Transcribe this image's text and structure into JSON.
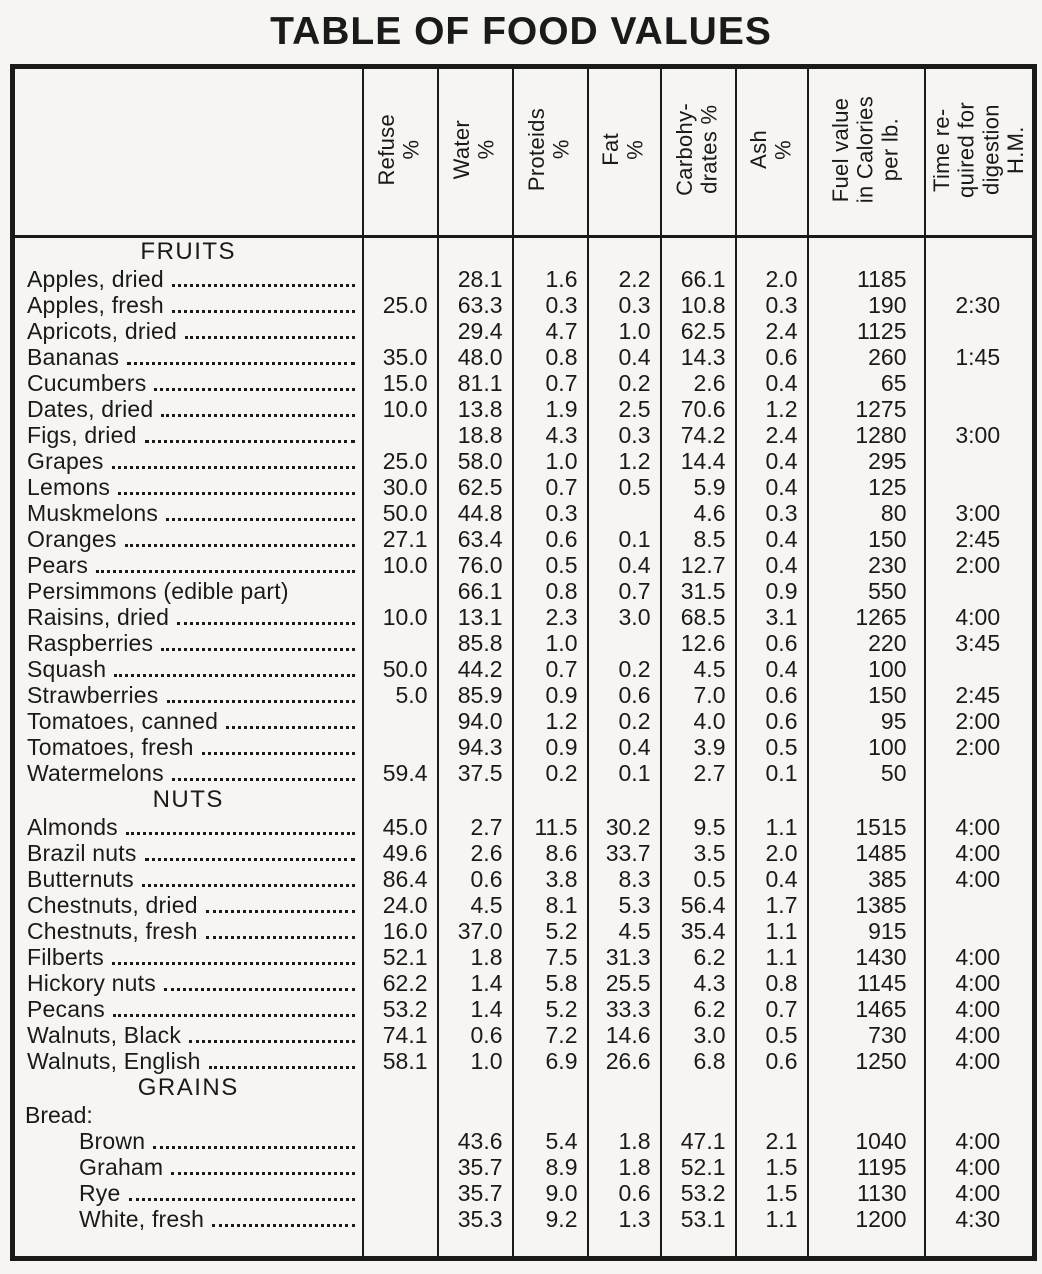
{
  "title": "TABLE OF FOOD VALUES",
  "colors": {
    "paper": "#f6f5f1",
    "ink": "#1a1a1a"
  },
  "columns": [
    {
      "id": "refuse",
      "label": "Refuse\n%"
    },
    {
      "id": "water",
      "label": "Water\n%"
    },
    {
      "id": "proteids",
      "label": "Proteids\n%"
    },
    {
      "id": "fat",
      "label": "Fat\n%"
    },
    {
      "id": "carbohydrates",
      "label": "Carbohy-\ndrates %"
    },
    {
      "id": "ash",
      "label": "Ash\n%"
    },
    {
      "id": "fuel-value",
      "label": "Fuel value\nin Calories\nper lb."
    },
    {
      "id": "digestion-time",
      "label": "Time re-\nquired for\ndigestion\nH.M."
    }
  ],
  "sections": [
    {
      "heading": "FRUITS",
      "rows": [
        {
          "name": "Apples, dried",
          "values": [
            "",
            "28.1",
            "1.6",
            "2.2",
            "66.1",
            "2.0",
            "1185",
            ""
          ]
        },
        {
          "name": "Apples, fresh",
          "values": [
            "25.0",
            "63.3",
            "0.3",
            "0.3",
            "10.8",
            "0.3",
            "190",
            "2:30"
          ]
        },
        {
          "name": "Apricots, dried",
          "values": [
            "",
            "29.4",
            "4.7",
            "1.0",
            "62.5",
            "2.4",
            "1125",
            ""
          ]
        },
        {
          "name": "Bananas",
          "values": [
            "35.0",
            "48.0",
            "0.8",
            "0.4",
            "14.3",
            "0.6",
            "260",
            "1:45"
          ]
        },
        {
          "name": "Cucumbers",
          "values": [
            "15.0",
            "81.1",
            "0.7",
            "0.2",
            "2.6",
            "0.4",
            "65",
            ""
          ]
        },
        {
          "name": "Dates, dried",
          "values": [
            "10.0",
            "13.8",
            "1.9",
            "2.5",
            "70.6",
            "1.2",
            "1275",
            ""
          ]
        },
        {
          "name": "Figs, dried",
          "values": [
            "",
            "18.8",
            "4.3",
            "0.3",
            "74.2",
            "2.4",
            "1280",
            "3:00"
          ]
        },
        {
          "name": "Grapes",
          "values": [
            "25.0",
            "58.0",
            "1.0",
            "1.2",
            "14.4",
            "0.4",
            "295",
            ""
          ]
        },
        {
          "name": "Lemons",
          "values": [
            "30.0",
            "62.5",
            "0.7",
            "0.5",
            "5.9",
            "0.4",
            "125",
            ""
          ]
        },
        {
          "name": "Muskmelons",
          "values": [
            "50.0",
            "44.8",
            "0.3",
            "",
            "4.6",
            "0.3",
            "80",
            "3:00"
          ]
        },
        {
          "name": "Oranges",
          "values": [
            "27.1",
            "63.4",
            "0.6",
            "0.1",
            "8.5",
            "0.4",
            "150",
            "2:45"
          ]
        },
        {
          "name": "Pears",
          "values": [
            "10.0",
            "76.0",
            "0.5",
            "0.4",
            "12.7",
            "0.4",
            "230",
            "2:00"
          ]
        },
        {
          "name": "Persimmons (edible part)",
          "leader": false,
          "values": [
            "",
            "66.1",
            "0.8",
            "0.7",
            "31.5",
            "0.9",
            "550",
            ""
          ]
        },
        {
          "name": "Raisins, dried",
          "values": [
            "10.0",
            "13.1",
            "2.3",
            "3.0",
            "68.5",
            "3.1",
            "1265",
            "4:00"
          ]
        },
        {
          "name": "Raspberries",
          "values": [
            "",
            "85.8",
            "1.0",
            "",
            "12.6",
            "0.6",
            "220",
            "3:45"
          ]
        },
        {
          "name": "Squash",
          "values": [
            "50.0",
            "44.2",
            "0.7",
            "0.2",
            "4.5",
            "0.4",
            "100",
            ""
          ]
        },
        {
          "name": "Strawberries",
          "values": [
            "5.0",
            "85.9",
            "0.9",
            "0.6",
            "7.0",
            "0.6",
            "150",
            "2:45"
          ]
        },
        {
          "name": "Tomatoes, canned",
          "values": [
            "",
            "94.0",
            "1.2",
            "0.2",
            "4.0",
            "0.6",
            "95",
            "2:00"
          ]
        },
        {
          "name": "Tomatoes, fresh",
          "values": [
            "",
            "94.3",
            "0.9",
            "0.4",
            "3.9",
            "0.5",
            "100",
            "2:00"
          ]
        },
        {
          "name": "Watermelons",
          "values": [
            "59.4",
            "37.5",
            "0.2",
            "0.1",
            "2.7",
            "0.1",
            "50",
            ""
          ]
        }
      ]
    },
    {
      "heading": "NUTS",
      "rows": [
        {
          "name": "Almonds",
          "values": [
            "45.0",
            "2.7",
            "11.5",
            "30.2",
            "9.5",
            "1.1",
            "1515",
            "4:00"
          ]
        },
        {
          "name": "Brazil nuts",
          "values": [
            "49.6",
            "2.6",
            "8.6",
            "33.7",
            "3.5",
            "2.0",
            "1485",
            "4:00"
          ]
        },
        {
          "name": "Butternuts",
          "values": [
            "86.4",
            "0.6",
            "3.8",
            "8.3",
            "0.5",
            "0.4",
            "385",
            "4:00"
          ]
        },
        {
          "name": "Chestnuts, dried",
          "values": [
            "24.0",
            "4.5",
            "8.1",
            "5.3",
            "56.4",
            "1.7",
            "1385",
            ""
          ]
        },
        {
          "name": "Chestnuts, fresh",
          "values": [
            "16.0",
            "37.0",
            "5.2",
            "4.5",
            "35.4",
            "1.1",
            "915",
            ""
          ]
        },
        {
          "name": "Filberts",
          "values": [
            "52.1",
            "1.8",
            "7.5",
            "31.3",
            "6.2",
            "1.1",
            "1430",
            "4:00"
          ]
        },
        {
          "name": "Hickory nuts",
          "values": [
            "62.2",
            "1.4",
            "5.8",
            "25.5",
            "4.3",
            "0.8",
            "1145",
            "4:00"
          ]
        },
        {
          "name": "Pecans",
          "values": [
            "53.2",
            "1.4",
            "5.2",
            "33.3",
            "6.2",
            "0.7",
            "1465",
            "4:00"
          ]
        },
        {
          "name": "Walnuts, Black",
          "values": [
            "74.1",
            "0.6",
            "7.2",
            "14.6",
            "3.0",
            "0.5",
            "730",
            "4:00"
          ]
        },
        {
          "name": "Walnuts, English",
          "values": [
            "58.1",
            "1.0",
            "6.9",
            "26.6",
            "6.8",
            "0.6",
            "1250",
            "4:00"
          ]
        }
      ]
    },
    {
      "heading": "GRAINS",
      "subheading": "Bread:",
      "rows": [
        {
          "name": "Brown",
          "indent": true,
          "values": [
            "",
            "43.6",
            "5.4",
            "1.8",
            "47.1",
            "2.1",
            "1040",
            "4:00"
          ]
        },
        {
          "name": "Graham",
          "indent": true,
          "values": [
            "",
            "35.7",
            "8.9",
            "1.8",
            "52.1",
            "1.5",
            "1195",
            "4:00"
          ]
        },
        {
          "name": "Rye",
          "indent": true,
          "values": [
            "",
            "35.7",
            "9.0",
            "0.6",
            "53.2",
            "1.5",
            "1130",
            "4:00"
          ]
        },
        {
          "name": "White, fresh",
          "indent": true,
          "values": [
            "",
            "35.3",
            "9.2",
            "1.3",
            "53.1",
            "1.1",
            "1200",
            "4:30"
          ]
        }
      ]
    }
  ]
}
